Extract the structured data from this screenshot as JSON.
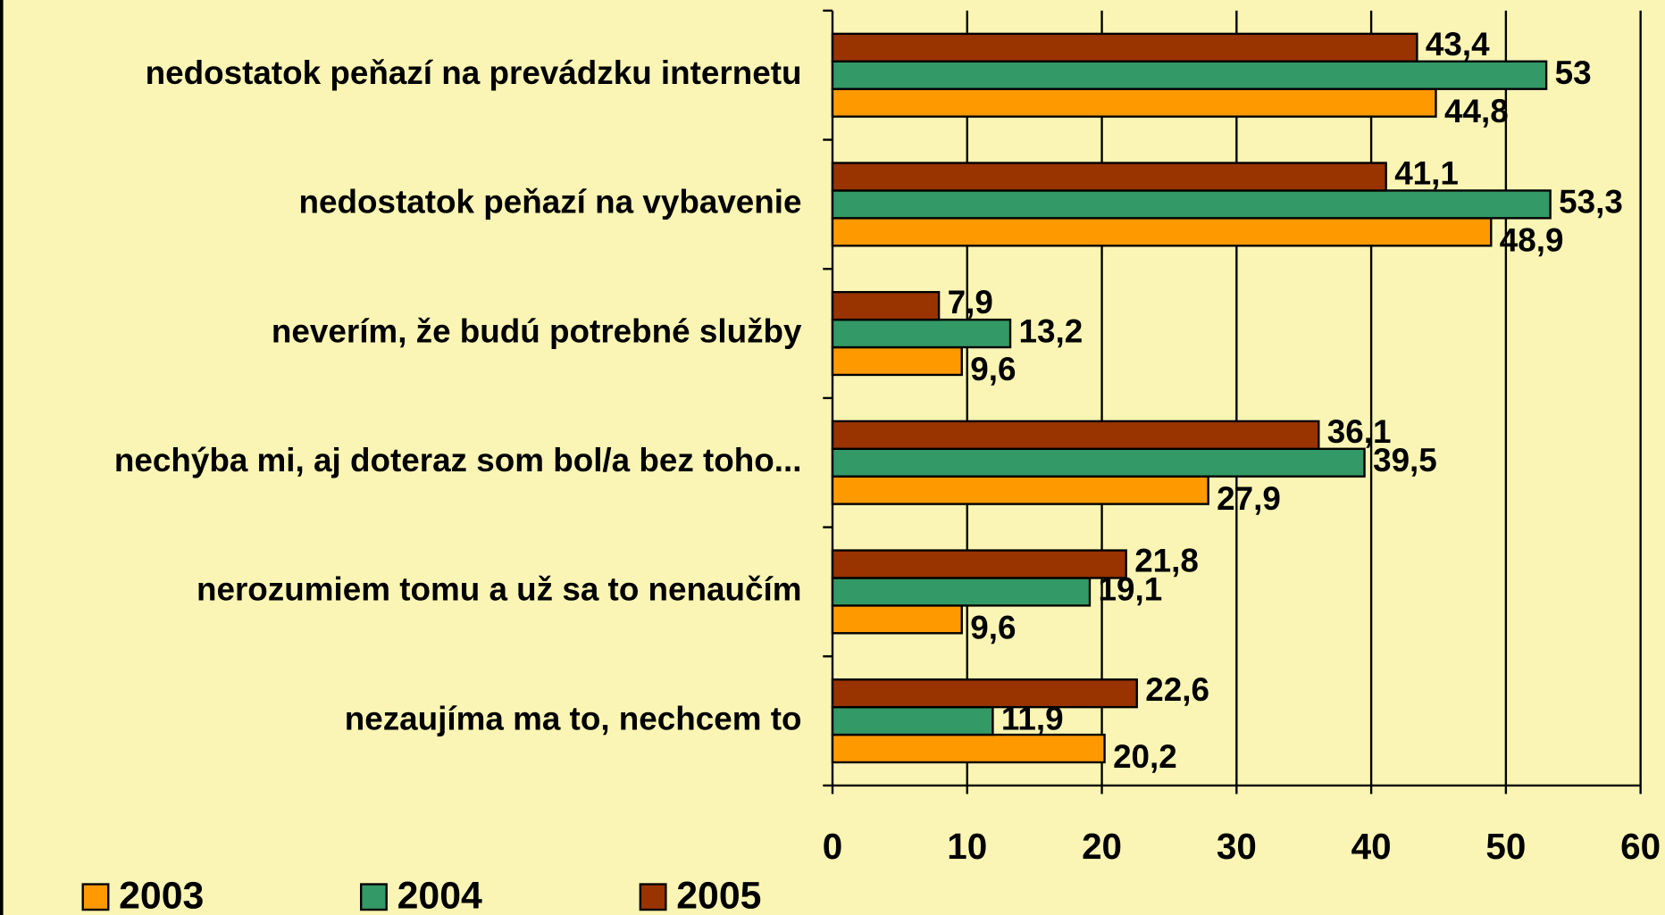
{
  "chart_data": {
    "type": "hbar",
    "categories": [
      "nedostatok peňazí na prevádzku internetu",
      "nedostatok peňazí na vybavenie",
      "neverím, že budú potrebné služby",
      "nechýba mi, aj doteraz som bol/a bez toho...",
      "nerozumiem tomu a už sa to nenaučím",
      "nezaujíma ma to, nechcem to"
    ],
    "series": [
      {
        "name": "2003",
        "color": "#ff9900",
        "values": [
          44.8,
          48.9,
          9.6,
          27.9,
          9.6,
          20.2
        ],
        "value_labels": [
          "44,8",
          "48,9",
          "9,6",
          "27,9",
          "9,6",
          "20,2"
        ]
      },
      {
        "name": "2004",
        "color": "#339966",
        "values": [
          53,
          53.3,
          13.2,
          39.5,
          19.1,
          11.9
        ],
        "value_labels": [
          "53",
          "53,3",
          "13,2",
          "39,5",
          "19,1",
          "11,9"
        ]
      },
      {
        "name": "2005",
        "color": "#993300",
        "values": [
          43.4,
          41.1,
          7.9,
          36.1,
          21.8,
          22.6
        ],
        "value_labels": [
          "43,4",
          "41,1",
          "7,9",
          "36,1",
          "21,8",
          "22,6"
        ]
      }
    ],
    "xlim": [
      0,
      60
    ],
    "xticks": [
      0,
      10,
      20,
      30,
      40,
      50,
      60
    ],
    "grid": true,
    "legend": "bottom"
  }
}
